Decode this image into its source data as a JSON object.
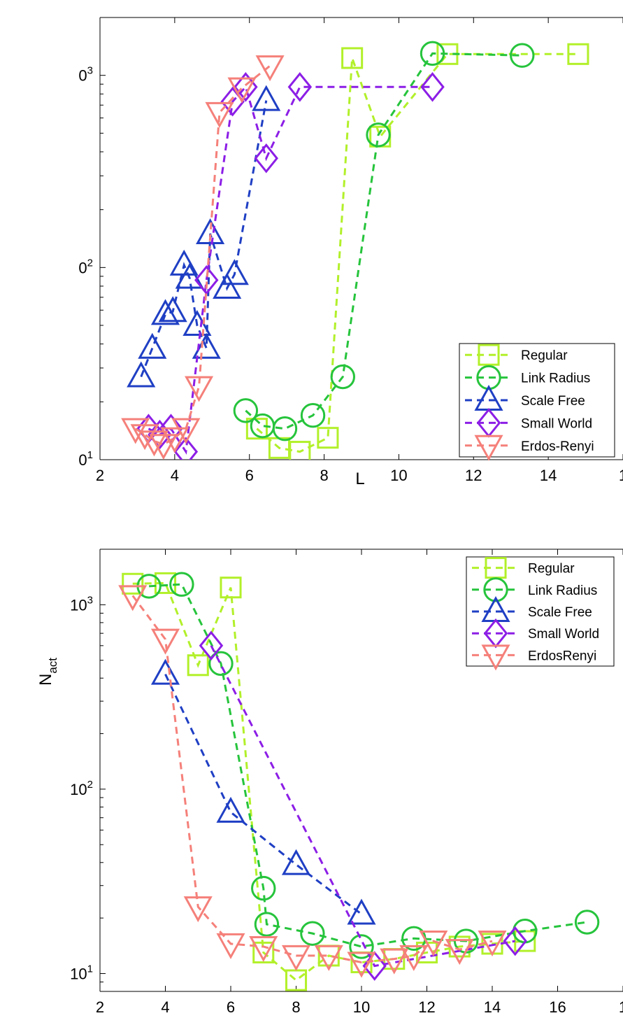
{
  "colors": {
    "Regular": "#b2f02a",
    "Link Radius": "#26c43c",
    "Scale Free": "#1f3fc4",
    "Small World": "#8c1ee6",
    "Erdos-Renyi": "#f5807a"
  },
  "chart_data": [
    {
      "type": "scatter",
      "title": "",
      "xlabel": "L",
      "ylabel": "",
      "xlim": [
        2,
        16
      ],
      "ylim": [
        10,
        2000
      ],
      "yscale": "log",
      "grid": false,
      "legend_position": "bottom-right",
      "x_tick_labels": [
        "2",
        "4",
        "6",
        "8",
        "10",
        "12",
        "14",
        "1"
      ],
      "y_tick_labels": [
        {
          "base": "0",
          "exp": "1"
        },
        {
          "base": "0",
          "exp": "2"
        },
        {
          "base": "0",
          "exp": "3"
        }
      ],
      "series": [
        {
          "name": "Regular",
          "marker": "square",
          "x": [
            6.2,
            6.8,
            7.35,
            8.1,
            8.75,
            9.5,
            11.3,
            14.8
          ],
          "y": [
            14.5,
            11.5,
            11,
            13,
            1230,
            480,
            1290,
            1290
          ]
        },
        {
          "name": "Link Radius",
          "marker": "circle",
          "x": [
            5.9,
            6.35,
            6.95,
            7.7,
            8.5,
            9.45,
            10.9,
            13.3
          ],
          "y": [
            18,
            15,
            14.5,
            17,
            27,
            490,
            1300,
            1270
          ]
        },
        {
          "name": "Scale Free",
          "marker": "triangle-up",
          "x": [
            3.1,
            3.4,
            3.75,
            3.95,
            4.25,
            4.4,
            4.6,
            4.85,
            4.95,
            5.4,
            5.6,
            6.45
          ],
          "y": [
            27,
            38,
            57,
            59,
            103,
            88,
            50,
            38,
            150,
            78,
            92,
            740
          ]
        },
        {
          "name": "Small World",
          "marker": "diamond",
          "x": [
            3.3,
            3.6,
            3.9,
            4.3,
            4.85,
            5.55,
            5.9,
            6.45,
            7.35,
            10.9
          ],
          "y": [
            14.5,
            13.5,
            14.5,
            11,
            86,
            730,
            870,
            370,
            870,
            870
          ]
        },
        {
          "name": "Erdos-Renyi",
          "marker": "triangle-down",
          "x": [
            2.95,
            3.2,
            3.45,
            3.7,
            4.0,
            4.3,
            4.65,
            5.2,
            5.8,
            6.55
          ],
          "y": [
            14.5,
            13.5,
            12.5,
            12,
            13,
            14.5,
            24,
            640,
            860,
            1120
          ]
        }
      ]
    },
    {
      "type": "scatter",
      "title": "",
      "xlabel": "",
      "ylabel": "N",
      "ylabel_sub": "act",
      "xlim": [
        2,
        18
      ],
      "ylim": [
        8,
        2000
      ],
      "yscale": "log",
      "grid": false,
      "legend_position": "top-right",
      "x_tick_labels": [
        "2",
        "4",
        "6",
        "8",
        "10",
        "12",
        "14",
        "16",
        "1"
      ],
      "y_tick_labels": [
        {
          "base": "10",
          "exp": "1"
        },
        {
          "base": "10",
          "exp": "2"
        },
        {
          "base": "10",
          "exp": "3"
        }
      ],
      "series": [
        {
          "name": "Regular",
          "marker": "square",
          "x": [
            3,
            4,
            5,
            6,
            7,
            8,
            9,
            10,
            11,
            12,
            13,
            14,
            15
          ],
          "y": [
            1300,
            1310,
            470,
            1240,
            13,
            9.2,
            12.5,
            11.5,
            12,
            13,
            14,
            14.5,
            15
          ]
        },
        {
          "name": "Link Radius",
          "marker": "circle",
          "x": [
            3.5,
            4.5,
            5.7,
            7.0,
            7.1,
            8.5,
            10.0,
            11.6,
            13.2,
            15.0,
            16.9
          ],
          "y": [
            1260,
            1290,
            480,
            29,
            18.5,
            16.5,
            14,
            15.5,
            15,
            17,
            19
          ]
        },
        {
          "name": "Scale Free",
          "marker": "triangle-up",
          "x": [
            4,
            6,
            8,
            10
          ],
          "y": [
            420,
            75,
            39,
            21
          ]
        },
        {
          "name": "Small World",
          "marker": "diamond",
          "x": [
            5.4,
            10.4,
            14.7
          ],
          "y": [
            600,
            11,
            15
          ]
        },
        {
          "name": "ErdosRenyi",
          "marker": "triangle-down",
          "x": [
            3,
            4,
            5,
            6,
            7,
            8,
            9,
            10,
            11,
            11.6,
            12.2,
            13.0,
            14.0
          ],
          "y": [
            1120,
            650,
            23,
            14.5,
            14,
            12.5,
            12.5,
            11.5,
            12,
            12.5,
            15,
            13.5,
            15
          ]
        }
      ]
    }
  ]
}
